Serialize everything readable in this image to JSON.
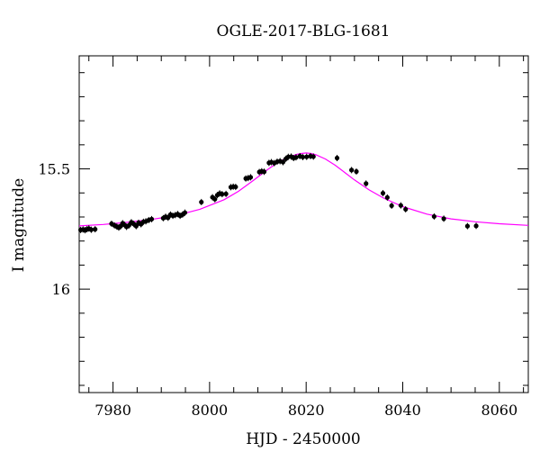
{
  "chart_data": {
    "type": "scatter",
    "title": "OGLE-2017-BLG-1681",
    "xlabel": "HJD - 2450000",
    "ylabel": "I magnitude",
    "xlim": [
      7973,
      8066
    ],
    "ylim": [
      16.43,
      15.03
    ],
    "y_inverted": true,
    "xticks": [
      7980,
      8000,
      8020,
      8040,
      8060
    ],
    "yticks": [
      15.5,
      16
    ],
    "ytick_labels": [
      "15.5",
      "16"
    ],
    "colors": {
      "data": "#000000",
      "model": "#ff00ff"
    },
    "data_points": [
      {
        "x": 7973.3,
        "y": 15.754
      },
      {
        "x": 7973.8,
        "y": 15.752
      },
      {
        "x": 7974.2,
        "y": 15.755
      },
      {
        "x": 7974.6,
        "y": 15.751
      },
      {
        "x": 7975.0,
        "y": 15.748
      },
      {
        "x": 7975.5,
        "y": 15.753
      },
      {
        "x": 7976.3,
        "y": 15.751
      },
      {
        "x": 7979.7,
        "y": 15.728
      },
      {
        "x": 7980.3,
        "y": 15.735
      },
      {
        "x": 7980.8,
        "y": 15.74
      },
      {
        "x": 7981.2,
        "y": 15.744
      },
      {
        "x": 7981.6,
        "y": 15.738
      },
      {
        "x": 7982.0,
        "y": 15.726
      },
      {
        "x": 7982.4,
        "y": 15.733
      },
      {
        "x": 7982.8,
        "y": 15.741
      },
      {
        "x": 7983.3,
        "y": 15.735
      },
      {
        "x": 7983.8,
        "y": 15.722
      },
      {
        "x": 7984.3,
        "y": 15.729
      },
      {
        "x": 7984.8,
        "y": 15.738
      },
      {
        "x": 7985.3,
        "y": 15.724
      },
      {
        "x": 7985.8,
        "y": 15.73
      },
      {
        "x": 7986.3,
        "y": 15.72
      },
      {
        "x": 7986.8,
        "y": 15.718
      },
      {
        "x": 7987.4,
        "y": 15.713
      },
      {
        "x": 7988.0,
        "y": 15.709
      },
      {
        "x": 7990.4,
        "y": 15.705
      },
      {
        "x": 7990.9,
        "y": 15.699
      },
      {
        "x": 7991.4,
        "y": 15.703
      },
      {
        "x": 7991.9,
        "y": 15.69
      },
      {
        "x": 7992.4,
        "y": 15.695
      },
      {
        "x": 7992.9,
        "y": 15.692
      },
      {
        "x": 7993.4,
        "y": 15.688
      },
      {
        "x": 7993.9,
        "y": 15.695
      },
      {
        "x": 7994.4,
        "y": 15.69
      },
      {
        "x": 7994.9,
        "y": 15.682
      },
      {
        "x": 7998.3,
        "y": 15.638
      },
      {
        "x": 8000.6,
        "y": 15.618
      },
      {
        "x": 8001.1,
        "y": 15.626
      },
      {
        "x": 8001.6,
        "y": 15.609
      },
      {
        "x": 8002.1,
        "y": 15.602
      },
      {
        "x": 8002.6,
        "y": 15.605
      },
      {
        "x": 8003.4,
        "y": 15.604
      },
      {
        "x": 8004.4,
        "y": 15.576
      },
      {
        "x": 8004.9,
        "y": 15.574
      },
      {
        "x": 8005.4,
        "y": 15.575
      },
      {
        "x": 8007.5,
        "y": 15.54
      },
      {
        "x": 8008.0,
        "y": 15.538
      },
      {
        "x": 8008.5,
        "y": 15.535
      },
      {
        "x": 8010.3,
        "y": 15.513
      },
      {
        "x": 8010.8,
        "y": 15.51
      },
      {
        "x": 8011.3,
        "y": 15.512
      },
      {
        "x": 8012.3,
        "y": 15.475
      },
      {
        "x": 8012.8,
        "y": 15.472
      },
      {
        "x": 8013.4,
        "y": 15.476
      },
      {
        "x": 8014.0,
        "y": 15.47
      },
      {
        "x": 8014.6,
        "y": 15.468
      },
      {
        "x": 8015.2,
        "y": 15.472
      },
      {
        "x": 8015.8,
        "y": 15.458
      },
      {
        "x": 8016.3,
        "y": 15.45
      },
      {
        "x": 8016.9,
        "y": 15.449
      },
      {
        "x": 8017.4,
        "y": 15.455
      },
      {
        "x": 8017.9,
        "y": 15.452
      },
      {
        "x": 8018.7,
        "y": 15.447
      },
      {
        "x": 8019.3,
        "y": 15.451
      },
      {
        "x": 8020.1,
        "y": 15.45
      },
      {
        "x": 8020.9,
        "y": 15.447
      },
      {
        "x": 8021.5,
        "y": 15.449
      },
      {
        "x": 8026.4,
        "y": 15.455
      },
      {
        "x": 8029.4,
        "y": 15.505
      },
      {
        "x": 8030.4,
        "y": 15.511
      },
      {
        "x": 8032.4,
        "y": 15.561
      },
      {
        "x": 8035.9,
        "y": 15.601
      },
      {
        "x": 8036.8,
        "y": 15.619
      },
      {
        "x": 8037.7,
        "y": 15.653
      },
      {
        "x": 8039.6,
        "y": 15.652
      },
      {
        "x": 8040.6,
        "y": 15.668
      },
      {
        "x": 8046.5,
        "y": 15.698
      },
      {
        "x": 8048.5,
        "y": 15.707
      },
      {
        "x": 8053.4,
        "y": 15.738
      },
      {
        "x": 8055.2,
        "y": 15.737
      }
    ],
    "model_curve": {
      "x": [
        7973,
        7978,
        7983,
        7988,
        7993,
        7998,
        8003,
        8006,
        8009,
        8012,
        8014,
        8016,
        8018,
        8019,
        8020,
        8021,
        8022,
        8024,
        8026,
        8028,
        8030,
        8033,
        8036,
        8040,
        8045,
        8050,
        8055,
        8060,
        8066
      ],
      "y": [
        15.737,
        15.731,
        15.722,
        15.71,
        15.694,
        15.668,
        15.628,
        15.593,
        15.549,
        15.503,
        15.475,
        15.454,
        15.44,
        15.436,
        15.434,
        15.436,
        15.441,
        15.459,
        15.485,
        15.515,
        15.546,
        15.587,
        15.621,
        15.657,
        15.688,
        15.708,
        15.72,
        15.728,
        15.735
      ]
    }
  }
}
